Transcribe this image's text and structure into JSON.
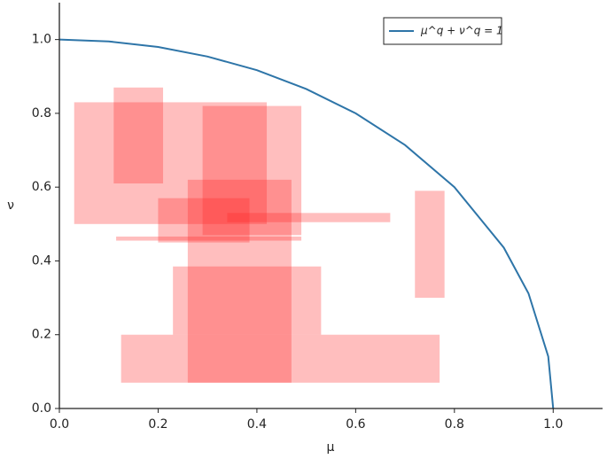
{
  "chart_data": {
    "type": "interval-rects",
    "x_label": "μ",
    "y_label": "ν",
    "xlim": [
      0,
      1.1
    ],
    "ylim": [
      0,
      1.1
    ],
    "xticks": [
      {
        "value": 0,
        "label": "0.0"
      },
      {
        "value": 0.2,
        "label": "0.2"
      },
      {
        "value": 0.4,
        "label": "0.4"
      },
      {
        "value": 0.6,
        "label": "0.6"
      },
      {
        "value": 0.8,
        "label": "0.8"
      },
      {
        "value": 1,
        "label": "1.0"
      }
    ],
    "yticks": [
      {
        "value": 0,
        "label": "0.0"
      },
      {
        "value": 0.2,
        "label": "0.2"
      },
      {
        "value": 0.4,
        "label": "0.4"
      },
      {
        "value": 0.6,
        "label": "0.6"
      },
      {
        "value": 0.8,
        "label": "0.8"
      },
      {
        "value": 1,
        "label": "1.0"
      }
    ],
    "rect_color": "rgba(255,40,40,0.3)",
    "rects": [
      {
        "mu": [
          0.03,
          0.42
        ],
        "nu": [
          0.5,
          0.83
        ]
      },
      {
        "mu": [
          0.11,
          0.21
        ],
        "nu": [
          0.61,
          0.87
        ]
      },
      {
        "mu": [
          0.29,
          0.49
        ],
        "nu": [
          0.47,
          0.82
        ]
      },
      {
        "mu": [
          0.26,
          0.47
        ],
        "nu": [
          0.07,
          0.62
        ]
      },
      {
        "mu": [
          0.2,
          0.385
        ],
        "nu": [
          0.45,
          0.57
        ]
      },
      {
        "mu": [
          0.34,
          0.67
        ],
        "nu": [
          0.505,
          0.53
        ]
      },
      {
        "mu": [
          0.115,
          0.49
        ],
        "nu": [
          0.455,
          0.466
        ]
      },
      {
        "mu": [
          0.72,
          0.78
        ],
        "nu": [
          0.3,
          0.59
        ]
      },
      {
        "mu": [
          0.23,
          0.53
        ],
        "nu": [
          0.2,
          0.385
        ]
      },
      {
        "mu": [
          0.125,
          0.77
        ],
        "nu": [
          0.07,
          0.2
        ]
      }
    ],
    "series": [
      {
        "name": "μ^q + ν^q = 1",
        "color": "#2e75a8",
        "x": [
          0,
          0.1,
          0.2,
          0.3,
          0.4,
          0.5,
          0.6,
          0.7,
          0.8,
          0.9,
          0.95,
          0.99,
          1
        ],
        "values": [
          1,
          0.995,
          0.98,
          0.954,
          0.917,
          0.866,
          0.8,
          0.714,
          0.6,
          0.436,
          0.312,
          0.141,
          0
        ]
      }
    ],
    "legend": "upper right"
  }
}
